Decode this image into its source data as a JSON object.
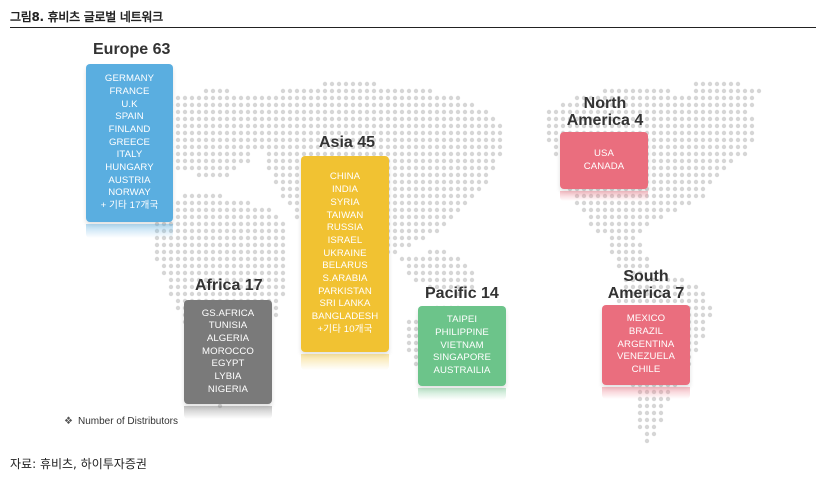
{
  "figure_title": "그림8. 휴비츠 글로벌 네트워크",
  "colors": {
    "europe": "#5aaee0",
    "asia": "#f1c232",
    "africa": "#7a7a7a",
    "pacific": "#6cc48a",
    "north_america": "#ea6e7e",
    "south_america": "#ea6e7e",
    "map_dot": "#d6d6d6"
  },
  "regions": {
    "europe": {
      "label": "Europe 63",
      "items": [
        "GERMANY",
        "FRANCE",
        "U.K",
        "SPAIN",
        "FINLAND",
        "GREECE",
        "ITALY",
        "HUNGARY",
        "AUSTRIA",
        "NORWAY",
        "+ 기타 17개국"
      ]
    },
    "asia": {
      "label": "Asia 45",
      "items": [
        "CHINA",
        "INDIA",
        "SYRIA",
        "TAIWAN",
        "RUSSIA",
        "ISRAEL",
        "UKRAINE",
        "BELARUS",
        "S.ARABIA",
        "PARKISTAN",
        "SRI LANKA",
        "BANGLADESH",
        "+기타 10개국"
      ]
    },
    "africa": {
      "label": "Africa 17",
      "items": [
        "GS.AFRICA",
        "TUNISIA",
        "ALGERIA",
        "MOROCCO",
        "EGYPT",
        "LYBIA",
        "NIGERIA"
      ]
    },
    "pacific": {
      "label": "Pacific 14",
      "items": [
        "TAIPEI",
        "PHILIPPINE",
        "VIETNAM",
        "SINGAPORE",
        "AUSTRAILIA"
      ]
    },
    "north_america": {
      "label_line1": "North",
      "label_line2": "America 4",
      "items": [
        "USA",
        "CANADA"
      ]
    },
    "south_america": {
      "label_line1": "South",
      "label_line2": "America 7",
      "items": [
        "MEXICO",
        "BRAZIL",
        "ARGENTINA",
        "VENEZUELA",
        "CHILE"
      ]
    }
  },
  "legend": {
    "bullet": "❖",
    "text": "Number of Distributors"
  },
  "source": "자료: 휴비츠, 하이투자증권"
}
